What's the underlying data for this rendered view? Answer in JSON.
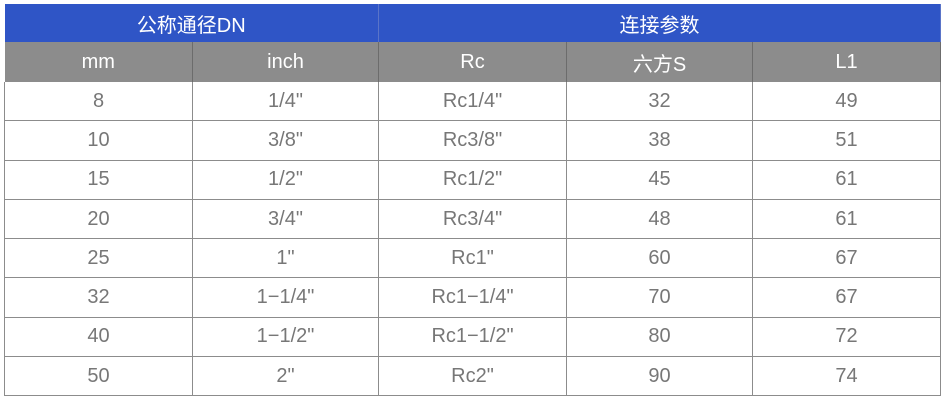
{
  "colors": {
    "group_header": "#2f55c6",
    "column_header": "#8c8c8c"
  },
  "group_headers": [
    "公称通径DN",
    "连接参数"
  ],
  "columns": [
    "mm",
    "inch",
    "Rc",
    "六方S",
    "L1"
  ],
  "rows": [
    [
      "8",
      "1/4\"",
      "Rc1/4\"",
      "32",
      "49"
    ],
    [
      "10",
      "3/8\"",
      "Rc3/8\"",
      "38",
      "51"
    ],
    [
      "15",
      "1/2\"",
      "Rc1/2\"",
      "45",
      "61"
    ],
    [
      "20",
      "3/4\"",
      "Rc3/4\"",
      "48",
      "61"
    ],
    [
      "25",
      "1\"",
      "Rc1\"",
      "60",
      "67"
    ],
    [
      "32",
      "1−1/4\"",
      "Rc1−1/4\"",
      "70",
      "67"
    ],
    [
      "40",
      "1−1/2\"",
      "Rc1−1/2\"",
      "80",
      "72"
    ],
    [
      "50",
      "2\"",
      "Rc2\"",
      "90",
      "74"
    ]
  ]
}
